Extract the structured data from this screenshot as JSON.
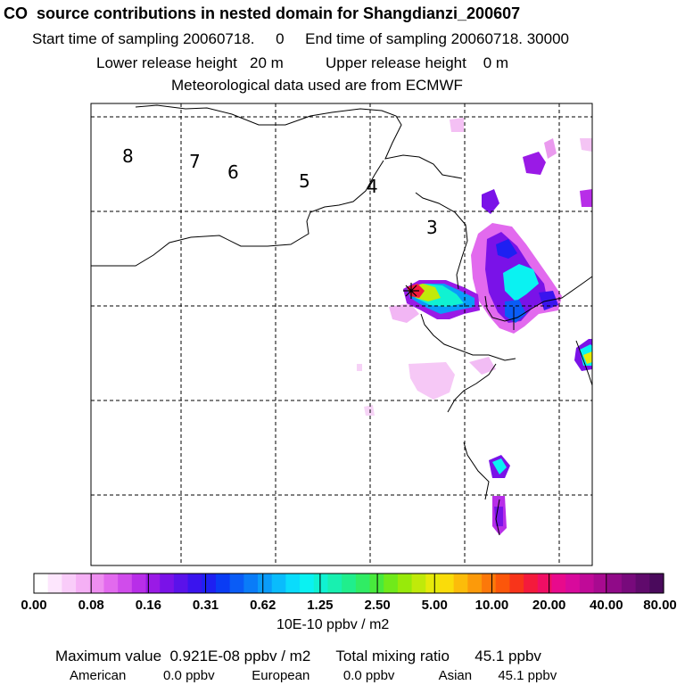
{
  "header": {
    "title": "CO  source contributions in nested domain for Shangdianzi_200607",
    "sampling": "Start time of sampling 20060718.     0     End time of sampling 20060718. 30000",
    "release": "Lower release height   20 m          Upper release height    0 m",
    "meteo": "Meteorological data used are from ECMWF"
  },
  "map": {
    "zone_labels": [
      "8",
      "7",
      "6",
      "5",
      "4",
      "3"
    ]
  },
  "colorbar": {
    "tick_labels": [
      "0.00",
      "0.08",
      "0.16",
      "0.31",
      "0.62",
      "1.25",
      "2.50",
      "5.00",
      "10.00",
      "20.00",
      "40.00",
      "80.00"
    ],
    "units": "10E-10 ppbv / m2",
    "colors": [
      "#ffffff",
      "#fde6fd",
      "#f9ccf9",
      "#f5b0f5",
      "#ee8ef0",
      "#e26aee",
      "#d04ceb",
      "#b82ee8",
      "#9a1ae6",
      "#7a12e8",
      "#5a12ea",
      "#3a14ee",
      "#1e20f2",
      "#0a3cf4",
      "#0a5cf6",
      "#0a7cf8",
      "#0a9cfa",
      "#0abcfc",
      "#0adcfc",
      "#0af2f2",
      "#10f2d2",
      "#18f0b0",
      "#20ee8c",
      "#30ec64",
      "#48ea3c",
      "#70ea1a",
      "#98ea0a",
      "#c0ea0a",
      "#e6ea0a",
      "#fadc0a",
      "#fcbc0a",
      "#fc9a0a",
      "#fc780a",
      "#fc560a",
      "#f8341a",
      "#f41a3c",
      "#f00e64",
      "#e80a8c",
      "#d80a9c",
      "#c00a98",
      "#a80a90",
      "#900a88",
      "#780a7c",
      "#600a6c",
      "#4a0a5c"
    ]
  },
  "summary": {
    "maximum": "Maximum value  0.921E-08 ppbv / m2",
    "total": "Total mixing ratio      45.1 ppbv",
    "american_label": "American",
    "american_value": "0.0 ppbv",
    "european_label": "European",
    "european_value": "0.0 ppbv",
    "asian_label": "Asian",
    "asian_value": "45.1 ppbv"
  },
  "chart_data": {
    "type": "heatmap",
    "title": "CO  source contributions in nested domain for Shangdianzi_200607",
    "units": "10E-10 ppbv / m2",
    "levels": [
      0.0,
      0.08,
      0.16,
      0.31,
      0.62,
      1.25,
      2.5,
      5.0,
      10.0,
      20.0,
      40.0,
      80.0
    ],
    "maximum_value_ppbv_per_m2": 9.21e-09,
    "total_mixing_ratio_ppbv": 45.1,
    "regional_contributions_ppbv": {
      "American": 0.0,
      "European": 0.0,
      "Asian": 45.1
    },
    "legend": "bottom",
    "grid": true
  }
}
